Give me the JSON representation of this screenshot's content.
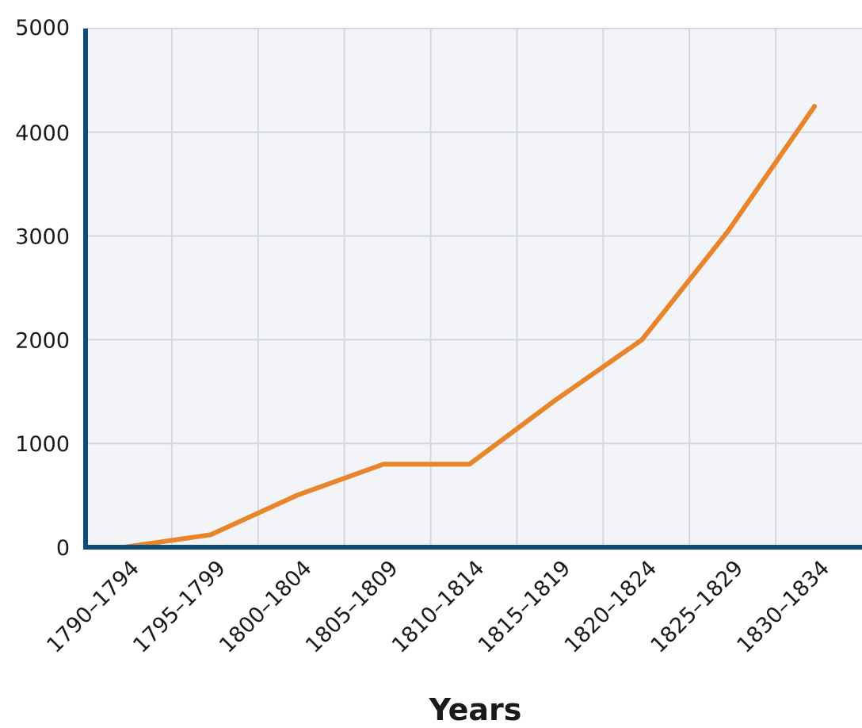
{
  "chart_data": {
    "type": "line",
    "title": "",
    "xlabel": "Years",
    "ylabel": "",
    "categories": [
      "1790–1794",
      "1795–1799",
      "1800–1804",
      "1805–1809",
      "1810–1814",
      "1815–1819",
      "1820–1824",
      "1825–1829",
      "1830–1834"
    ],
    "series": [
      {
        "values": [
          0,
          120,
          500,
          800,
          800,
          1420,
          2000,
          3050,
          4250
        ],
        "color": "#e8842a"
      }
    ],
    "yticks": [
      "0",
      "1000",
      "2000",
      "3000",
      "4000",
      "5000"
    ],
    "ylim": [
      0,
      5000
    ],
    "grid": true,
    "legend": "none",
    "colors": {
      "axis": "#0f4c75",
      "grid": "#d4d7db",
      "plot_background": "#f2f4f7"
    }
  }
}
